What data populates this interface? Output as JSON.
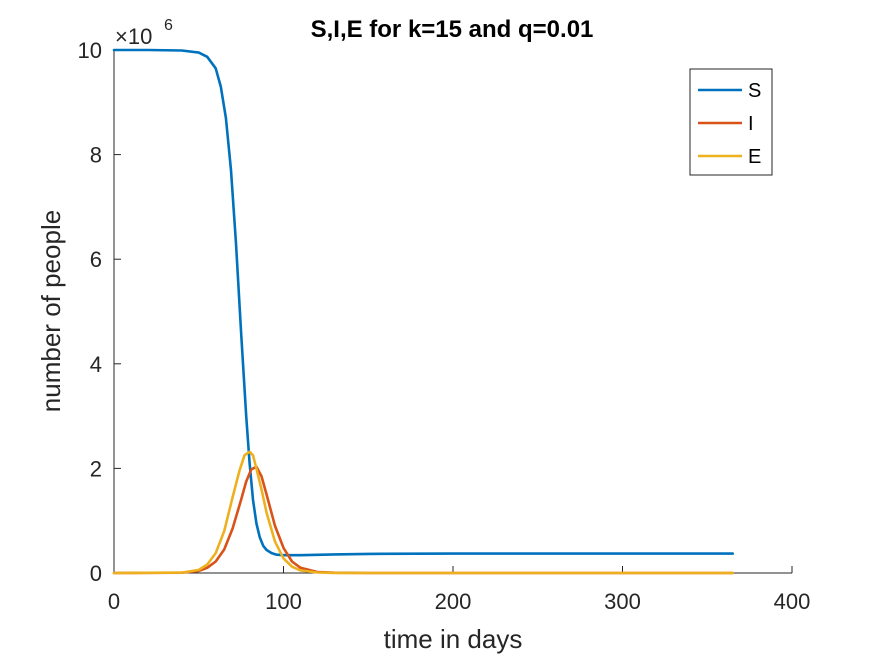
{
  "chart_data": {
    "type": "line",
    "title": "S,I,E for k=15  and q=0.01",
    "xlabel": "time in days",
    "ylabel": "number of people",
    "xlim": [
      0,
      400
    ],
    "ylim": [
      0,
      10000000
    ],
    "y_multiplier": {
      "base": "×10",
      "exponent": "6"
    },
    "xticks": [
      0,
      100,
      200,
      300,
      400
    ],
    "xtick_labels": [
      "0",
      "100",
      "200",
      "300",
      "400"
    ],
    "yticks": [
      0,
      2000000,
      4000000,
      6000000,
      8000000,
      10000000
    ],
    "ytick_labels": [
      "0",
      "2",
      "4",
      "6",
      "8",
      "10"
    ],
    "grid": false,
    "legend_position": "top-right",
    "series": [
      {
        "name": "S",
        "color": "#0072BD",
        "x": [
          0,
          20,
          40,
          50,
          55,
          60,
          63,
          66,
          69,
          72,
          75,
          78,
          80,
          82,
          84,
          86,
          88,
          90,
          93,
          96,
          100,
          110,
          130,
          150,
          200,
          250,
          300,
          365
        ],
        "y": [
          10000000,
          10000000,
          9990000,
          9950000,
          9870000,
          9650000,
          9300000,
          8700000,
          7700000,
          6300000,
          4600000,
          3000000,
          2100000,
          1400000,
          950000,
          680000,
          520000,
          440000,
          380000,
          350000,
          340000,
          340000,
          355000,
          365000,
          370000,
          370000,
          370000,
          370000
        ]
      },
      {
        "name": "I",
        "color": "#D95319",
        "x": [
          0,
          40,
          50,
          55,
          60,
          65,
          70,
          75,
          78,
          81,
          84,
          87,
          90,
          95,
          100,
          105,
          110,
          120,
          130,
          150,
          200,
          300,
          365
        ],
        "y": [
          0,
          5000,
          40000,
          100000,
          220000,
          450000,
          850000,
          1400000,
          1750000,
          1980000,
          2030000,
          1850000,
          1500000,
          900000,
          480000,
          220000,
          100000,
          20000,
          5000,
          0,
          0,
          0,
          0
        ]
      },
      {
        "name": "E",
        "color": "#EDB120",
        "x": [
          0,
          40,
          50,
          55,
          60,
          65,
          70,
          74,
          77,
          80,
          82,
          84,
          87,
          90,
          95,
          100,
          105,
          110,
          120,
          130,
          150,
          200,
          300,
          365
        ],
        "y": [
          0,
          8000,
          60000,
          160000,
          380000,
          800000,
          1450000,
          1950000,
          2250000,
          2320000,
          2250000,
          2000000,
          1600000,
          1150000,
          600000,
          280000,
          120000,
          50000,
          10000,
          2000,
          0,
          0,
          0,
          0
        ]
      }
    ]
  }
}
